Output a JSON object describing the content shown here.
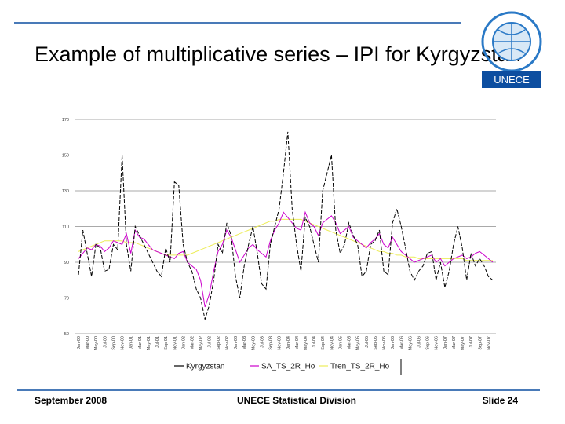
{
  "slide": {
    "title": "Example of multiplicative series – IPI for Kyrgyzstan",
    "logo": "UNECE",
    "footer": {
      "date": "September 2008",
      "division": "UNECE Statistical Division",
      "slide": "Slide 24"
    }
  },
  "chart_data": {
    "type": "line",
    "categories": [
      "Jan-00",
      null,
      "Mar-00",
      null,
      "May-00",
      null,
      "Jul-00",
      null,
      "Sep-00",
      null,
      "Nov-00",
      null,
      "Jan-01",
      null,
      "Mar-01",
      null,
      "May-01",
      null,
      "Jul-01",
      null,
      "Sep-01",
      null,
      "Nov-01",
      null,
      "Jan-02",
      null,
      "Mar-02",
      null,
      "May-02",
      null,
      "Jul-02",
      null,
      "Sep-02",
      null,
      "Nov-02",
      null,
      "Jan-03",
      null,
      "Mar-03",
      null,
      "May-03",
      null,
      "Jul-03",
      null,
      "Sep-03",
      null,
      "Nov-03",
      null,
      "Jan-04",
      null,
      "Mar-04",
      null,
      "May-04",
      null,
      "Jul-04",
      null,
      "Sep-04",
      null,
      "Nov-04",
      null,
      "Jan-05",
      null,
      "Mar-05",
      null,
      "May-05",
      null,
      "Jul-05",
      null,
      "Sep-05",
      null,
      "Nov-05",
      null,
      "Jan-06",
      null,
      "Mar-06",
      null,
      "May-06",
      null,
      "Jul-06",
      null,
      "Sep-06",
      null,
      "Nov-06",
      null,
      "Jan-07",
      null,
      "Mar-07",
      null,
      "May-07",
      null,
      "Jul-07",
      null,
      "Sep-07",
      null,
      "Nov-07",
      null
    ],
    "series": [
      {
        "name": "Kyrgyzstan",
        "color": "#000000",
        "line_style": "dashed",
        "values": [
          83,
          108,
          95,
          82,
          100,
          98,
          85,
          86,
          100,
          97,
          150,
          100,
          85,
          110,
          105,
          100,
          95,
          90,
          85,
          82,
          98,
          90,
          135,
          133,
          100,
          90,
          85,
          75,
          70,
          58,
          66,
          80,
          100,
          95,
          112,
          105,
          82,
          70,
          88,
          100,
          110,
          95,
          78,
          75,
          100,
          110,
          120,
          140,
          163,
          120,
          100,
          85,
          115,
          110,
          100,
          90,
          130,
          140,
          150,
          108,
          95,
          100,
          112,
          105,
          100,
          82,
          85,
          100,
          102,
          108,
          85,
          83,
          112,
          120,
          110,
          98,
          85,
          80,
          85,
          88,
          95,
          96,
          80,
          90,
          76,
          85,
          100,
          110,
          98,
          80,
          95,
          88,
          92,
          88,
          82,
          80
        ]
      },
      {
        "name": "SA_TS_2R_Ho",
        "color": "#cc00cc",
        "line_style": "solid",
        "values": [
          92,
          95,
          98,
          97,
          100,
          99,
          96,
          98,
          102,
          101,
          100,
          106,
          95,
          108,
          104,
          103,
          100,
          97,
          96,
          95,
          94,
          93,
          92,
          95,
          96,
          90,
          88,
          86,
          80,
          65,
          72,
          85,
          96,
          100,
          108,
          104,
          97,
          90,
          94,
          98,
          100,
          97,
          95,
          93,
          102,
          108,
          112,
          118,
          115,
          112,
          109,
          108,
          118,
          112,
          110,
          105,
          112,
          114,
          116,
          112,
          106,
          108,
          110,
          104,
          102,
          100,
          98,
          101,
          103,
          106,
          100,
          98,
          104,
          100,
          96,
          94,
          92,
          90,
          91,
          92,
          93,
          94,
          90,
          92,
          88,
          90,
          92,
          93,
          94,
          92,
          93,
          95,
          96,
          94,
          92,
          90
        ]
      },
      {
        "name": "Tren_TS_2R_Ho",
        "color": "#eded5a",
        "line_style": "solid",
        "values": [
          96,
          97,
          98,
          99,
          100,
          101,
          102,
          102,
          102,
          102,
          102,
          101,
          101,
          101,
          100,
          99,
          98,
          97,
          96,
          95,
          94,
          94,
          94,
          94,
          94,
          94,
          95,
          96,
          97,
          98,
          99,
          100,
          101,
          102,
          103,
          104,
          105,
          106,
          107,
          108,
          109,
          110,
          111,
          112,
          113,
          113,
          114,
          114,
          114,
          114,
          114,
          114,
          113,
          112,
          111,
          110,
          109,
          108,
          107,
          106,
          105,
          104,
          103,
          102,
          101,
          100,
          99,
          98,
          97,
          96,
          96,
          95,
          95,
          94,
          94,
          93,
          93,
          93,
          92,
          92,
          92,
          92,
          92,
          92,
          92,
          92,
          92,
          92,
          92,
          91,
          91,
          91,
          91,
          91,
          91,
          91
        ]
      }
    ],
    "ylim": [
      50,
      170
    ],
    "yticks": [
      50,
      70,
      90,
      110,
      130,
      150,
      170
    ],
    "grid": true,
    "legend": "bottom"
  }
}
